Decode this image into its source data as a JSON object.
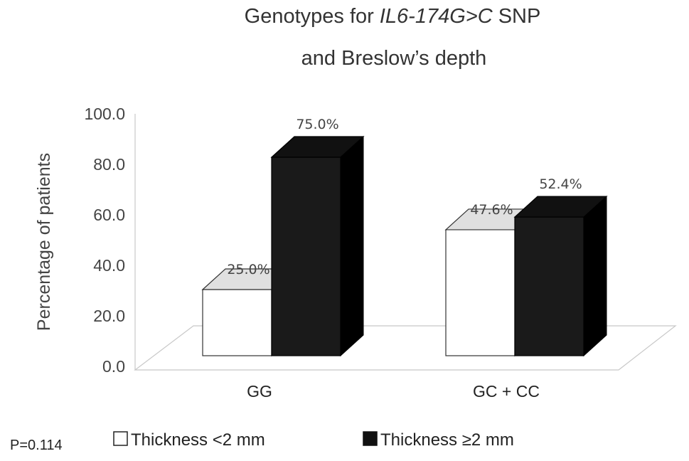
{
  "chart_data": {
    "type": "bar",
    "title_parts": {
      "line1_prefix": "Genotypes for ",
      "line1_italic": "IL6-174G>C",
      "line1_suffix": " SNP",
      "line2": "and Breslow’s depth"
    },
    "ylabel": "Percentage of patients",
    "ylim": [
      0,
      100
    ],
    "yticks": [
      "0.0",
      "20.0",
      "40.0",
      "60.0",
      "80.0",
      "100.0"
    ],
    "categories": [
      "GG",
      "GC + CC"
    ],
    "series": [
      {
        "name": "Thickness <2 mm",
        "values": [
          25.0,
          47.6
        ],
        "labels": [
          "25.0%",
          "47.6%"
        ],
        "color": "#ffffff",
        "top_color": "#e0e0e0"
      },
      {
        "name": "Thickness ≥2 mm",
        "values": [
          75.0,
          52.4
        ],
        "labels": [
          "75.0%",
          "52.4%"
        ],
        "color": "#1a1a1a",
        "top_color": "#111111"
      }
    ],
    "annotation": "P=0.114",
    "legend_position": "bottom",
    "grid": false
  }
}
